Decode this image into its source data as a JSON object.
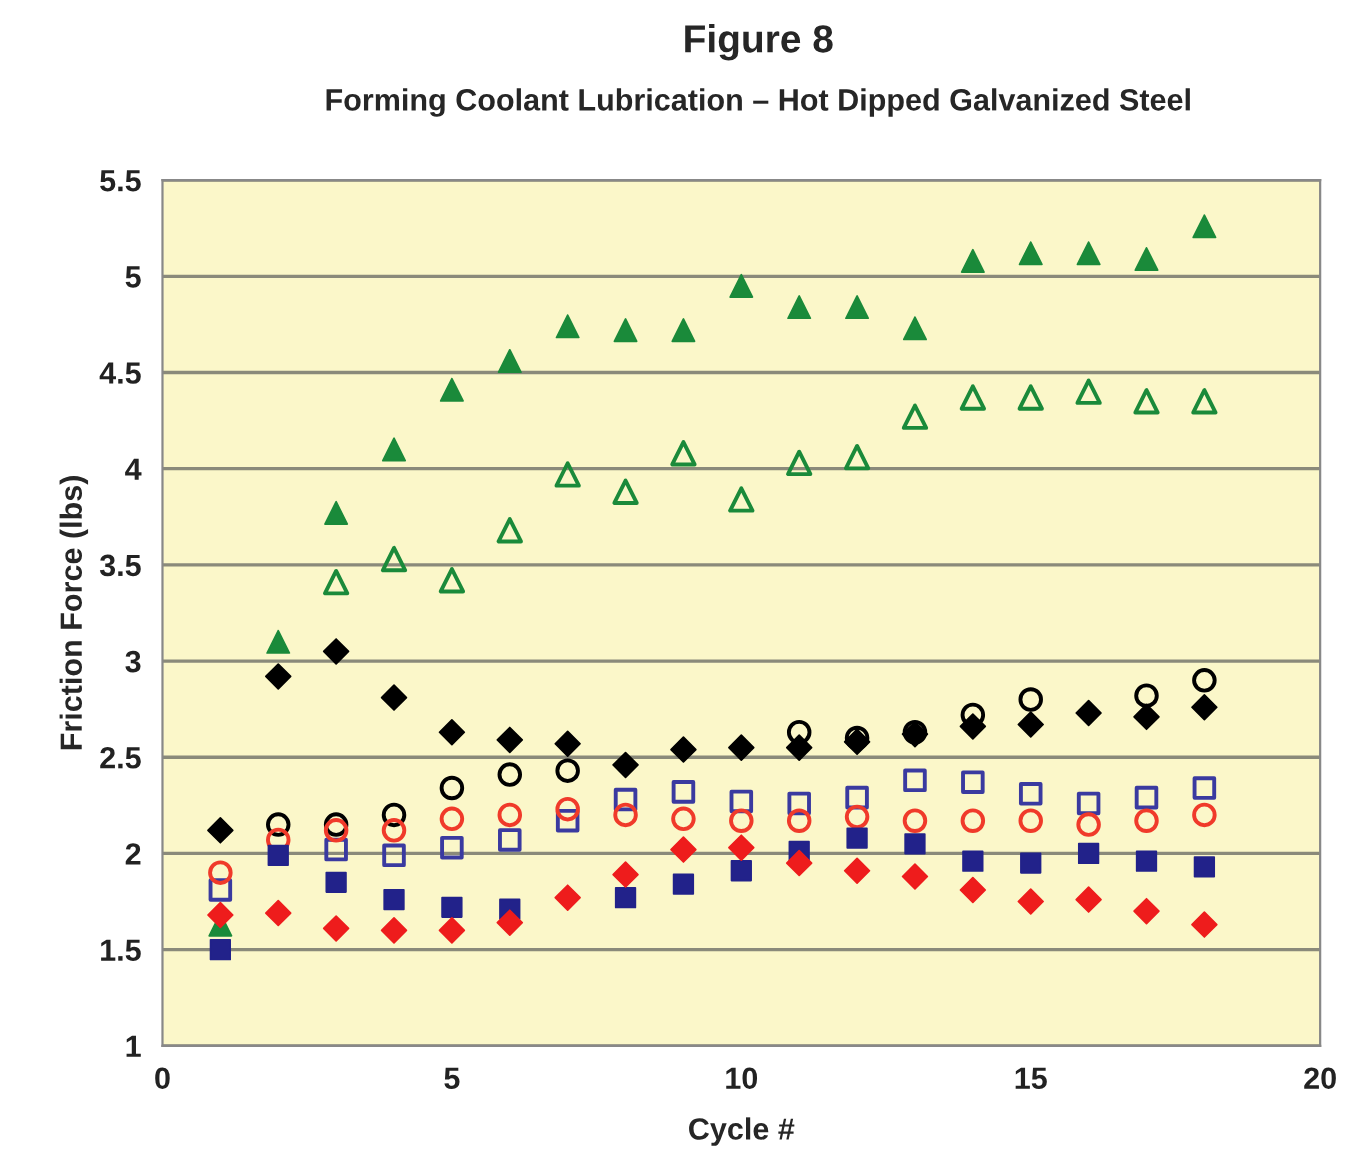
{
  "chart_data": {
    "type": "scatter",
    "title": "Figure 8",
    "subtitle": "Forming Coolant Lubrication – Hot Dipped Galvanized Steel",
    "xlabel": "Cycle #",
    "ylabel": "Friction Force (lbs)",
    "x": [
      1,
      2,
      3,
      4,
      5,
      6,
      7,
      8,
      9,
      10,
      11,
      12,
      13,
      14,
      15,
      16,
      17,
      18
    ],
    "series": [
      {
        "color": "#1a8a3a",
        "marker": "triangle",
        "values": [
          1.63,
          3.1,
          3.77,
          4.1,
          4.41,
          4.56,
          4.74,
          4.72,
          4.72,
          4.95,
          4.84,
          4.84,
          4.73,
          5.08,
          5.12,
          5.12,
          5.09,
          5.26
        ]
      },
      {
        "color": "#1a8a3a",
        "marker": "triangle",
        "values": [
          null,
          null,
          3.41,
          3.53,
          3.42,
          3.68,
          3.97,
          3.88,
          4.08,
          3.84,
          4.03,
          4.06,
          4.27,
          4.37,
          4.37,
          4.4,
          4.35,
          4.35
        ]
      },
      {
        "color": "#000000",
        "marker": "circle",
        "values": [
          null,
          2.15,
          2.15,
          2.2,
          2.34,
          2.41,
          2.43,
          null,
          null,
          null,
          2.63,
          2.6,
          2.63,
          2.72,
          2.8,
          null,
          2.82,
          2.9
        ]
      },
      {
        "color": "#000000",
        "marker": "diamond",
        "values": [
          2.12,
          2.92,
          3.05,
          2.81,
          2.63,
          2.59,
          2.57,
          2.46,
          2.54,
          2.55,
          2.55,
          2.58,
          2.62,
          2.66,
          2.67,
          2.73,
          2.71,
          2.76
        ]
      },
      {
        "color": "#3a3aa0",
        "marker": "square",
        "values": [
          1.81,
          null,
          2.02,
          1.99,
          2.03,
          2.07,
          2.17,
          2.28,
          2.32,
          2.27,
          2.26,
          2.29,
          2.38,
          2.37,
          2.31,
          2.26,
          2.29,
          2.34
        ]
      },
      {
        "color": "#f03a2a",
        "marker": "circle",
        "values": [
          1.9,
          2.07,
          2.12,
          2.12,
          2.18,
          2.2,
          2.23,
          2.2,
          2.18,
          2.17,
          2.17,
          2.19,
          2.17,
          2.17,
          2.17,
          2.15,
          2.17,
          2.2
        ]
      },
      {
        "color": "#22228a",
        "marker": "square",
        "values": [
          1.5,
          1.99,
          1.85,
          1.76,
          1.72,
          1.71,
          null,
          1.77,
          1.84,
          1.91,
          2.01,
          2.08,
          2.05,
          1.96,
          1.95,
          2.0,
          1.96,
          1.93
        ]
      },
      {
        "color": "#ee1c1c",
        "marker": "diamond",
        "values": [
          1.68,
          1.69,
          1.61,
          1.6,
          1.6,
          1.64,
          1.77,
          1.89,
          2.02,
          2.03,
          1.95,
          1.91,
          1.88,
          1.81,
          1.75,
          1.76,
          1.7,
          1.63
        ]
      }
    ],
    "xlim": [
      0,
      20
    ],
    "xticks": [
      0,
      5,
      10,
      15,
      20
    ],
    "ylim": [
      1,
      5.5
    ],
    "yticks": [
      1,
      1.5,
      2,
      2.5,
      3,
      3.5,
      4,
      4.5,
      5,
      5.5
    ],
    "grid": "y"
  }
}
